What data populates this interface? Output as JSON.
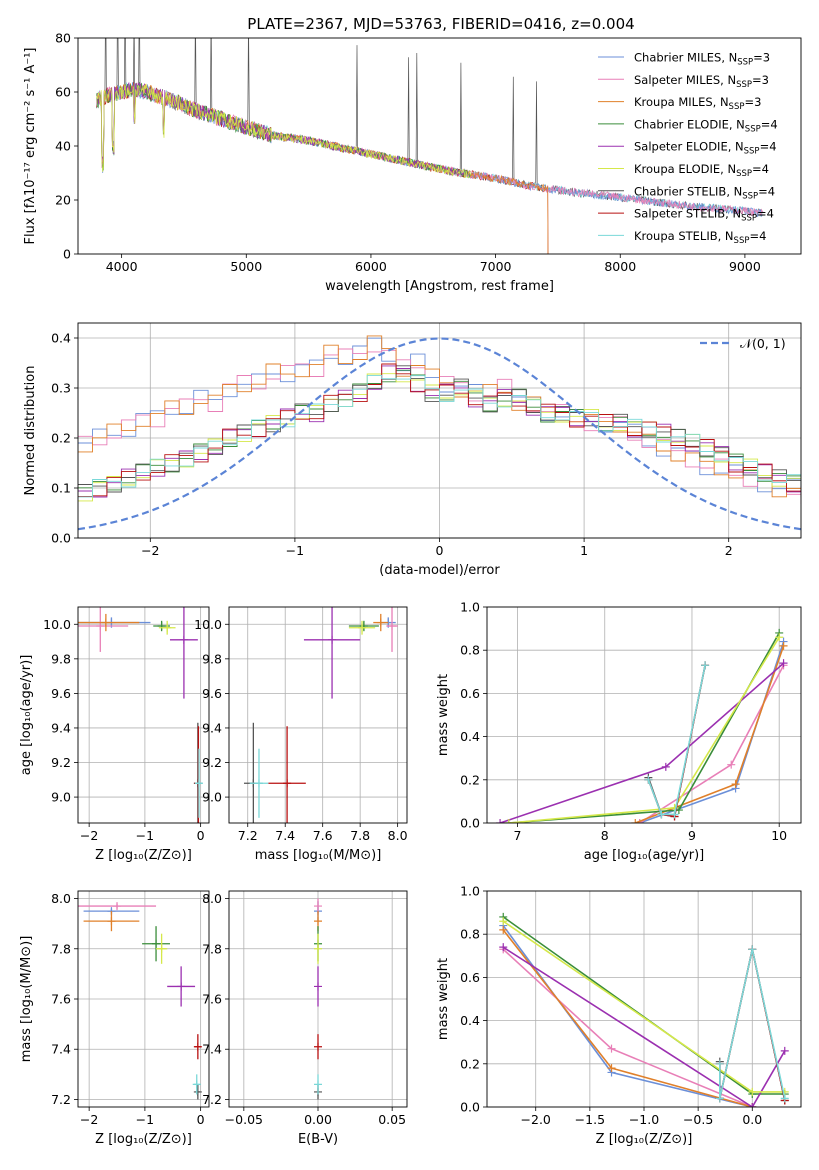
{
  "figure_title": "PLATE=2367, MJD=53763, FIBERID=0416, z=0.004",
  "series_colors": [
    "#6b8fd8",
    "#e87fb7",
    "#e0802a",
    "#3a8d3a",
    "#9b30b0",
    "#d5e84a",
    "#555555",
    "#b81010",
    "#7ad8d8"
  ],
  "chart_data": [
    {
      "type": "line",
      "panel": "spectrum",
      "title": "PLATE=2367, MJD=53763, FIBERID=0416, z=0.004",
      "xlabel": "wavelength [Angstrom, rest frame]",
      "ylabel": "Flux [fλ10⁻¹⁷ erg cm⁻² s⁻¹ A⁻¹]",
      "xlim": [
        3650,
        9450
      ],
      "ylim": [
        0,
        80
      ],
      "xticks": [
        4000,
        5000,
        6000,
        7000,
        8000,
        9000
      ],
      "yticks": [
        0,
        20,
        40,
        60,
        80
      ],
      "grid": false,
      "legend_position": "top-right",
      "continuum": {
        "x": [
          3800,
          3900,
          4000,
          4100,
          4200,
          4400,
          4600,
          4800,
          5000,
          5200,
          5500,
          5800,
          6000,
          6300,
          6600,
          7000,
          7300,
          7600,
          8000,
          8500,
          9000,
          9150
        ],
        "y": [
          57,
          59,
          60,
          61,
          60,
          57,
          53,
          50,
          47,
          44,
          42,
          39,
          37,
          34,
          31,
          28,
          25,
          23,
          21,
          18,
          16,
          15
        ]
      },
      "series": [
        {
          "name": "Chabrier MILES, N_SSP=3",
          "legend": "Chabrier MILES, N",
          "sub": "SSP",
          "suffix": "=3"
        },
        {
          "name": "Salpeter MILES, N_SSP=3",
          "legend": "Salpeter MILES, N",
          "sub": "SSP",
          "suffix": "=3"
        },
        {
          "name": "Kroupa MILES, N_SSP=3",
          "legend": "Kroupa MILES, N",
          "sub": "SSP",
          "suffix": "=3"
        },
        {
          "name": "Chabrier ELODIE, N_SSP=4",
          "legend": "Chabrier ELODIE, N",
          "sub": "SSP",
          "suffix": "=4"
        },
        {
          "name": "Salpeter ELODIE, N_SSP=4",
          "legend": "Salpeter ELODIE, N",
          "sub": "SSP",
          "suffix": "=4"
        },
        {
          "name": "Kroupa ELODIE, N_SSP=4",
          "legend": "Kroupa ELODIE, N",
          "sub": "SSP",
          "suffix": "=4"
        },
        {
          "name": "Chabrier STELIB, N_SSP=4",
          "legend": "Chabrier STELIB, N",
          "sub": "SSP",
          "suffix": "=4"
        },
        {
          "name": "Salpeter STELIB, N_SSP=4",
          "legend": "Salpeter STELIB, N",
          "sub": "SSP",
          "suffix": "=4"
        },
        {
          "name": "Kroupa STELIB, N_SSP=4",
          "legend": "Kroupa STELIB, N",
          "sub": "SSP",
          "suffix": "=4"
        }
      ]
    },
    {
      "type": "line",
      "panel": "residuals",
      "xlabel": "(data-model)/error",
      "ylabel": "Normed distribution",
      "xlim": [
        -2.5,
        2.5
      ],
      "ylim": [
        0,
        0.43
      ],
      "xticks": [
        -2,
        -1,
        0,
        1,
        2
      ],
      "yticks": [
        0.0,
        0.1,
        0.2,
        0.3,
        0.4
      ],
      "grid": true,
      "legend_position": "top-right",
      "gaussian": {
        "name": "N(0,1)",
        "mean": 0,
        "sigma": 1
      },
      "bin_width": 0.1,
      "bin_start": -2.5,
      "group_a": [
        0.19,
        0.2,
        0.21,
        0.22,
        0.24,
        0.24,
        0.26,
        0.26,
        0.28,
        0.27,
        0.3,
        0.31,
        0.31,
        0.33,
        0.33,
        0.34,
        0.34,
        0.37,
        0.36,
        0.37,
        0.39,
        0.37,
        0.34,
        0.35,
        0.32,
        0.31,
        0.3,
        0.29,
        0.29,
        0.3,
        0.27,
        0.27,
        0.25,
        0.25,
        0.24,
        0.23,
        0.23,
        0.23,
        0.21,
        0.19,
        0.18,
        0.17,
        0.16,
        0.14,
        0.14,
        0.13,
        0.12,
        0.11,
        0.1,
        0.1,
        0.08,
        0.07,
        0.07,
        0.06,
        0.05,
        0.06,
        0.05,
        0.04,
        0.04,
        0.04,
        0.04,
        0.03,
        0.03,
        0.03,
        0.03,
        0.02,
        0.03,
        0.02,
        0.02,
        0.03,
        0.03,
        0.02,
        0.03,
        0.03,
        0.04,
        0.03,
        0.04,
        0.03,
        0.03,
        0.03
      ],
      "group_b": [
        0.09,
        0.1,
        0.11,
        0.12,
        0.13,
        0.14,
        0.15,
        0.16,
        0.17,
        0.18,
        0.2,
        0.21,
        0.22,
        0.23,
        0.24,
        0.25,
        0.25,
        0.27,
        0.28,
        0.29,
        0.31,
        0.33,
        0.33,
        0.31,
        0.29,
        0.29,
        0.3,
        0.28,
        0.27,
        0.28,
        0.28,
        0.26,
        0.25,
        0.25,
        0.24,
        0.24,
        0.23,
        0.23,
        0.22,
        0.22,
        0.21,
        0.2,
        0.19,
        0.18,
        0.17,
        0.15,
        0.14,
        0.13,
        0.12,
        0.11,
        0.1,
        0.09,
        0.09,
        0.08,
        0.07,
        0.07,
        0.06,
        0.05,
        0.05,
        0.05,
        0.04,
        0.04,
        0.04,
        0.04,
        0.04,
        0.03,
        0.03,
        0.04,
        0.04,
        0.03,
        0.04,
        0.04,
        0.04,
        0.04,
        0.03,
        0.04,
        0.04,
        0.03,
        0.03,
        0.03
      ]
    },
    {
      "type": "scatter",
      "panel": "age-vs-Z",
      "xlabel": "Z [log₁₀(Z/Z⊙)]",
      "ylabel": "age  [log₁₀(age/yr)]",
      "xlim": [
        -2.2,
        0.15
      ],
      "ylim": [
        8.85,
        10.1
      ],
      "xticks": [
        -2,
        -1,
        0
      ],
      "yticks": [
        9.0,
        9.2,
        9.4,
        9.6,
        9.8,
        10.0
      ],
      "grid": true,
      "points": [
        {
          "x": -1.6,
          "y": 10.01,
          "xerr": 0.7,
          "yerr": 0.03
        },
        {
          "x": -1.8,
          "y": 9.99,
          "xerr": 0.5,
          "yerr": 0.15
        },
        {
          "x": -1.7,
          "y": 10.01,
          "xerr": 0.6,
          "yerr": 0.05
        },
        {
          "x": -0.7,
          "y": 9.99,
          "xerr": 0.15,
          "yerr": 0.03
        },
        {
          "x": -0.3,
          "y": 9.91,
          "xerr": 0.25,
          "yerr": 0.34
        },
        {
          "x": -0.6,
          "y": 9.98,
          "xerr": 0.15,
          "yerr": 0.04
        },
        {
          "x": -0.05,
          "y": 9.08,
          "xerr": 0.06,
          "yerr": 0.35
        },
        {
          "x": -0.04,
          "y": 9.08,
          "xerr": 0.05,
          "yerr": 0.33
        },
        {
          "x": -0.03,
          "y": 9.08,
          "xerr": 0.06,
          "yerr": 0.2
        }
      ]
    },
    {
      "type": "scatter",
      "panel": "age-vs-mass",
      "xlabel": "mass [log₁₀(M/M⊙)]",
      "xlim": [
        7.1,
        8.05
      ],
      "ylim": [
        8.85,
        10.1
      ],
      "xticks": [
        7.2,
        7.4,
        7.6,
        7.8,
        8.0
      ],
      "yticks": [
        9.0,
        9.2,
        9.4,
        9.6,
        9.8,
        10.0
      ],
      "grid": true,
      "points": [
        {
          "x": 7.95,
          "y": 10.01,
          "xerr": 0.04,
          "yerr": 0.03
        },
        {
          "x": 7.97,
          "y": 9.99,
          "xerr": 0.03,
          "yerr": 0.15
        },
        {
          "x": 7.91,
          "y": 10.01,
          "xerr": 0.04,
          "yerr": 0.05
        },
        {
          "x": 7.82,
          "y": 9.99,
          "xerr": 0.08,
          "yerr": 0.03
        },
        {
          "x": 7.65,
          "y": 9.91,
          "xerr": 0.15,
          "yerr": 0.34
        },
        {
          "x": 7.81,
          "y": 9.98,
          "xerr": 0.07,
          "yerr": 0.04
        },
        {
          "x": 7.23,
          "y": 9.08,
          "xerr": 0.05,
          "yerr": 0.35
        },
        {
          "x": 7.41,
          "y": 9.08,
          "xerr": 0.1,
          "yerr": 0.33
        },
        {
          "x": 7.26,
          "y": 9.08,
          "xerr": 0.05,
          "yerr": 0.2
        }
      ]
    },
    {
      "type": "line",
      "panel": "weight-vs-age",
      "xlabel": "age  [log₁₀(age/yr)]",
      "ylabel": "mass weight",
      "xlim": [
        6.65,
        10.25
      ],
      "ylim": [
        0,
        1
      ],
      "xticks": [
        7,
        8,
        9,
        10
      ],
      "yticks": [
        0.0,
        0.2,
        0.4,
        0.6,
        0.8,
        1.0
      ],
      "grid": true,
      "series": [
        {
          "x": [
            8.4,
            9.5,
            10.05
          ],
          "y": [
            0.0,
            0.16,
            0.84
          ]
        },
        {
          "x": [
            8.4,
            9.45,
            10.05
          ],
          "y": [
            0.0,
            0.27,
            0.73
          ]
        },
        {
          "x": [
            8.35,
            9.5,
            10.05
          ],
          "y": [
            0.0,
            0.18,
            0.82
          ]
        },
        {
          "x": [
            6.9,
            8.85,
            10.0
          ],
          "y": [
            0.0,
            0.06,
            0.88
          ]
        },
        {
          "x": [
            6.8,
            8.7,
            10.05
          ],
          "y": [
            0.0,
            0.26,
            0.74
          ]
        },
        {
          "x": [
            6.9,
            8.8,
            10.0
          ],
          "y": [
            0.0,
            0.07,
            0.86
          ]
        },
        {
          "x": [
            8.5,
            8.65,
            8.8,
            9.15
          ],
          "y": [
            0.21,
            0.04,
            0.03,
            0.73
          ]
        },
        {
          "x": [
            8.5,
            8.65,
            8.8,
            9.15
          ],
          "y": [
            0.2,
            0.04,
            0.03,
            0.73
          ]
        },
        {
          "x": [
            8.5,
            8.65,
            8.8,
            9.15
          ],
          "y": [
            0.2,
            0.04,
            0.04,
            0.73
          ]
        }
      ]
    },
    {
      "type": "scatter",
      "panel": "mass-vs-Z",
      "xlabel": "Z [log₁₀(Z/Z⊙)]",
      "ylabel": "mass [log₁₀(M/M⊙)]",
      "xlim": [
        -2.2,
        0.15
      ],
      "ylim": [
        7.17,
        8.03
      ],
      "xticks": [
        -2,
        -1,
        0
      ],
      "yticks": [
        7.2,
        7.4,
        7.6,
        7.8,
        8.0
      ],
      "grid": true,
      "points": [
        {
          "x": -1.6,
          "y": 7.95,
          "xerr": 0.5,
          "yerr": 0.01
        },
        {
          "x": -1.5,
          "y": 7.97,
          "xerr": 0.7,
          "yerr": 0.01
        },
        {
          "x": -1.6,
          "y": 7.91,
          "xerr": 0.5,
          "yerr": 0.04
        },
        {
          "x": -0.8,
          "y": 7.82,
          "xerr": 0.25,
          "yerr": 0.07
        },
        {
          "x": -0.35,
          "y": 7.65,
          "xerr": 0.25,
          "yerr": 0.08
        },
        {
          "x": -0.7,
          "y": 7.8,
          "xerr": 0.1,
          "yerr": 0.06
        },
        {
          "x": -0.05,
          "y": 7.23,
          "xerr": 0.04,
          "yerr": 0.03
        },
        {
          "x": -0.05,
          "y": 7.41,
          "xerr": 0.06,
          "yerr": 0.05
        },
        {
          "x": -0.07,
          "y": 7.26,
          "xerr": 0.05,
          "yerr": 0.04
        }
      ]
    },
    {
      "type": "scatter",
      "panel": "mass-vs-ebv",
      "xlabel": "E(B-V)",
      "xlim": [
        -0.06,
        0.06
      ],
      "ylim": [
        7.17,
        8.03
      ],
      "xticks": [
        -0.05,
        0.0,
        0.05
      ],
      "ytick_labels": [
        "7.2",
        "7.4",
        "7.6",
        "7.8",
        "8.0"
      ],
      "yticks": [
        7.2,
        7.4,
        7.6,
        7.8,
        8.0
      ],
      "grid": true,
      "points": [
        {
          "x": 0,
          "y": 7.95,
          "xerr": 0,
          "yerr": 0.04
        },
        {
          "x": 0,
          "y": 7.97,
          "xerr": 0,
          "yerr": 0.03
        },
        {
          "x": 0,
          "y": 7.91,
          "xerr": 0,
          "yerr": 0.04
        },
        {
          "x": 0,
          "y": 7.82,
          "xerr": 0,
          "yerr": 0.07
        },
        {
          "x": 0,
          "y": 7.65,
          "xerr": 0,
          "yerr": 0.08
        },
        {
          "x": 0,
          "y": 7.8,
          "xerr": 0,
          "yerr": 0.06
        },
        {
          "x": 0,
          "y": 7.23,
          "xerr": 0,
          "yerr": 0.03
        },
        {
          "x": 0,
          "y": 7.41,
          "xerr": 0,
          "yerr": 0.05
        },
        {
          "x": 0,
          "y": 7.26,
          "xerr": 0,
          "yerr": 0.04
        }
      ]
    },
    {
      "type": "line",
      "panel": "weight-vs-Z",
      "xlabel": "Z [log₁₀(Z/Z⊙)]",
      "ylabel": "mass weight",
      "xlim": [
        -2.45,
        0.45
      ],
      "ylim": [
        0,
        1
      ],
      "xticks": [
        -2.0,
        -1.5,
        -1.0,
        -0.5,
        0.0
      ],
      "yticks": [
        0.0,
        0.2,
        0.4,
        0.6,
        0.8,
        1.0
      ],
      "grid": true,
      "series": [
        {
          "x": [
            -2.3,
            -1.3,
            0.0
          ],
          "y": [
            0.84,
            0.16,
            0.0
          ]
        },
        {
          "x": [
            -2.3,
            -1.3,
            0.0
          ],
          "y": [
            0.73,
            0.27,
            0.0
          ]
        },
        {
          "x": [
            -2.3,
            -1.3,
            0.0
          ],
          "y": [
            0.82,
            0.18,
            0.0
          ]
        },
        {
          "x": [
            -2.3,
            0.0,
            0.3
          ],
          "y": [
            0.88,
            0.06,
            0.06
          ]
        },
        {
          "x": [
            -2.3,
            0.0,
            0.3
          ],
          "y": [
            0.74,
            0.0,
            0.26
          ]
        },
        {
          "x": [
            -2.3,
            0.0,
            0.3
          ],
          "y": [
            0.86,
            0.07,
            0.07
          ]
        },
        {
          "x": [
            -0.3,
            -0.3,
            0.0,
            0.3
          ],
          "y": [
            0.21,
            0.04,
            0.73,
            0.03
          ]
        },
        {
          "x": [
            -0.3,
            -0.3,
            0.0,
            0.3
          ],
          "y": [
            0.2,
            0.04,
            0.73,
            0.03
          ]
        },
        {
          "x": [
            -0.3,
            -0.3,
            0.0,
            0.3
          ],
          "y": [
            0.2,
            0.04,
            0.73,
            0.04
          ]
        }
      ]
    }
  ]
}
